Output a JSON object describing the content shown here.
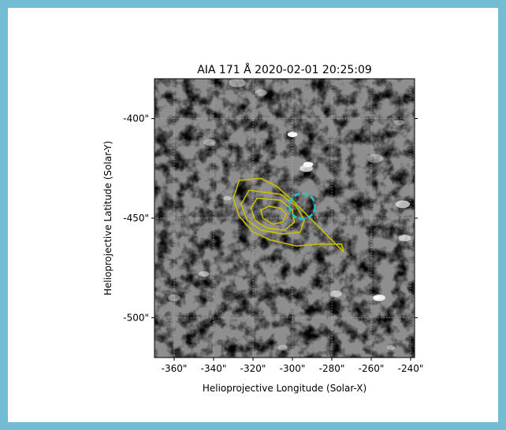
{
  "chart_data": {
    "type": "image",
    "title": "AIA 171 Å 2020-02-01 20:25:09",
    "xlabel": "Helioprojective Longitude (Solar-X)",
    "ylabel": "Helioprojective Latitude (Solar-Y)",
    "xlim": [
      -370,
      -238
    ],
    "ylim": [
      -520,
      -380
    ],
    "x_ticks": [
      -360,
      -340,
      -320,
      -300,
      -280,
      -260,
      -240
    ],
    "x_tick_labels": [
      "-360\"",
      "-340\"",
      "-320\"",
      "-300\"",
      "-280\"",
      "-260\"",
      "-240\""
    ],
    "y_ticks": [
      -400,
      -450,
      -500
    ],
    "y_tick_labels": [
      "-400\"",
      "-450\"",
      "-500\""
    ],
    "grid": true,
    "contour_color": "#c8c000",
    "circle_color": "#1fc6c6",
    "contours": [
      [
        [
          -312,
          -444
        ],
        [
          -316,
          -446
        ],
        [
          -315,
          -450
        ],
        [
          -310,
          -453
        ],
        [
          -305,
          -452
        ],
        [
          -303,
          -448
        ],
        [
          -306,
          -445
        ]
      ],
      [
        [
          -318,
          -440
        ],
        [
          -321,
          -445
        ],
        [
          -319,
          -451
        ],
        [
          -313,
          -455
        ],
        [
          -304,
          -456
        ],
        [
          -299,
          -452
        ],
        [
          -300,
          -446
        ],
        [
          -306,
          -441
        ]
      ],
      [
        [
          -322,
          -436
        ],
        [
          -326,
          -443
        ],
        [
          -323,
          -451
        ],
        [
          -316,
          -456
        ],
        [
          -305,
          -458
        ],
        [
          -296,
          -457
        ],
        [
          -294,
          -451
        ],
        [
          -298,
          -444
        ],
        [
          -306,
          -438
        ]
      ],
      [
        [
          -327,
          -431
        ],
        [
          -330,
          -440
        ],
        [
          -327,
          -449
        ],
        [
          -320,
          -457
        ],
        [
          -311,
          -461
        ],
        [
          -298,
          -464
        ],
        [
          -287,
          -463
        ],
        [
          -275,
          -463
        ],
        [
          -274,
          -467
        ],
        [
          -280,
          -461
        ],
        [
          -284,
          -457
        ],
        [
          -291,
          -450
        ],
        [
          -300,
          -441
        ],
        [
          -308,
          -434
        ],
        [
          -316,
          -430
        ]
      ]
    ],
    "circle": {
      "x": -295,
      "y": -444,
      "r": 6.5
    }
  }
}
